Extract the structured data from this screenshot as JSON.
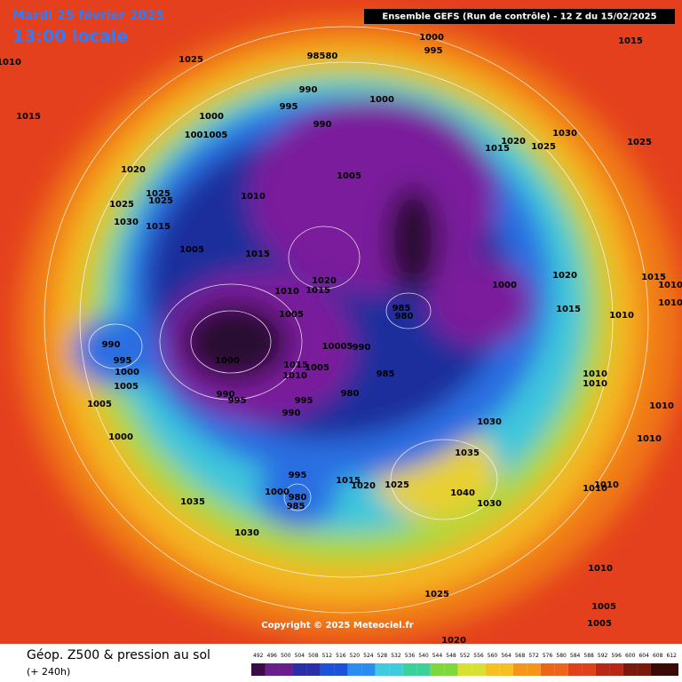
{
  "header": {
    "date": "Mardi 25 février 2025",
    "time": "13:00 locale",
    "model": "Ensemble GEFS  (Run de contrôle)  -  12 Z du 15/02/2025"
  },
  "labels": [
    "1010",
    "1025",
    "1000",
    "995",
    "98580",
    "1015",
    "990",
    "995",
    "1000",
    "1015",
    "1000",
    "990",
    "1001005",
    "1030",
    "1020",
    "1025",
    "1015",
    "1025",
    "1020",
    "1005",
    "1025",
    "1025",
    "1025",
    "1010",
    "1030",
    "1015",
    "1005",
    "1015",
    "1020",
    "1015",
    "1010",
    "1000",
    "1020",
    "1015",
    "1010",
    "1010",
    "1015",
    "985",
    "980",
    "1005",
    "1010",
    "990",
    "10005",
    "990",
    "995",
    "1000",
    "1015",
    "1005",
    "1010",
    "1000",
    "985",
    "1010",
    "1010",
    "1005",
    "990",
    "995",
    "995",
    "980",
    "990",
    "1005",
    "1010",
    "1030",
    "1000",
    "1010",
    "1035",
    "995",
    "1015",
    "1020",
    "1025",
    "1000",
    "1040",
    "980",
    "985",
    "1030",
    "1010",
    "1010",
    "1035",
    "1030",
    "1010",
    "1025",
    "1005",
    "1005",
    "1020"
  ],
  "copyright": "Copyright © 2025 Meteociel.fr",
  "footer": {
    "title": "Géop. Z500 & pression au sol",
    "step": "(+ 240h)"
  },
  "colorbar": [
    492,
    496,
    500,
    504,
    508,
    512,
    516,
    520,
    524,
    528,
    532,
    536,
    540,
    544,
    548,
    552,
    556,
    560,
    564,
    568,
    572,
    576,
    580,
    584,
    588,
    592,
    596,
    600,
    604,
    608,
    612
  ]
}
